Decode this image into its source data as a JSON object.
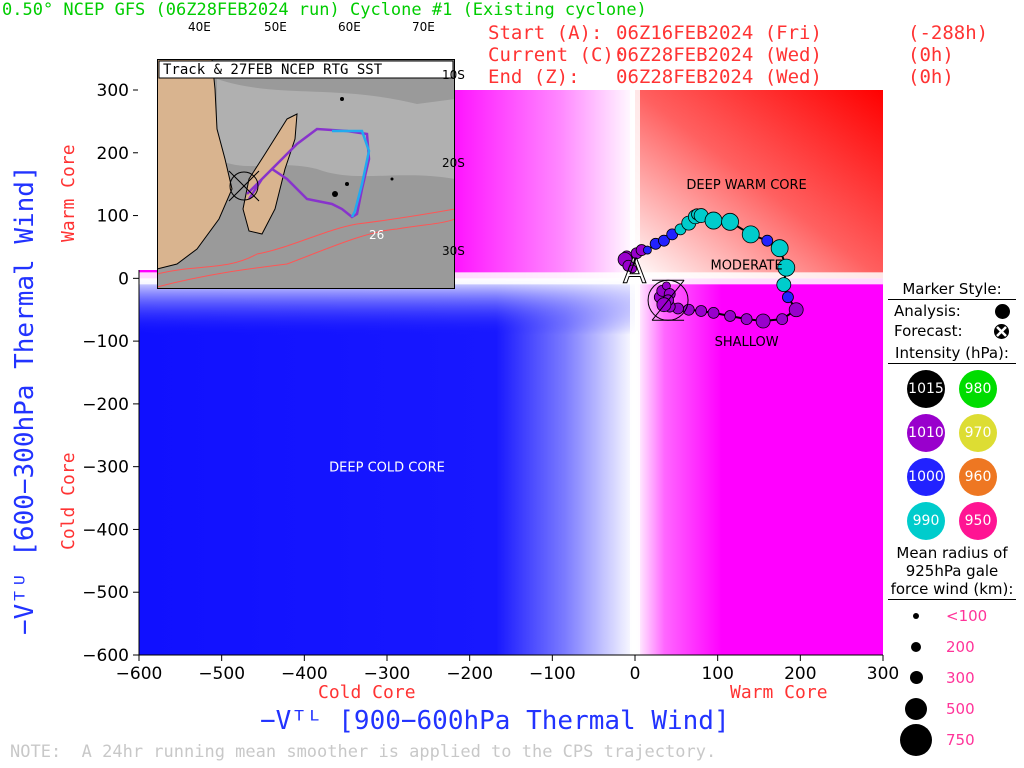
{
  "title": "0.50° NCEP GFS (06Z28FEB2024 run) Cyclone #1 (Existing cyclone)",
  "info": {
    "start": {
      "label": "Start (A):",
      "date": "06Z16FEB2024 (Fri)",
      "offset": "(-288h)"
    },
    "current": {
      "label": "Current (C):",
      "date": "06Z28FEB2024 (Wed)",
      "offset": "(0h)"
    },
    "end": {
      "label": "End (Z):",
      "date": "06Z28FEB2024 (Wed)",
      "offset": "(0h)"
    }
  },
  "note": "NOTE:  A 24hr running mean smoother is applied to the CPS trajectory.",
  "colors": {
    "title": "#00cc00",
    "info": "#ff3333",
    "axis_label": "#2233ff",
    "core_label": "#ff3333",
    "cold": "#1010ff",
    "warm_x": "#ff00ff",
    "warm_both": "#ff0000"
  },
  "chart_data": {
    "type": "scatter",
    "xlabel": "−Vᵀᴸ [900−600hPa Thermal Wind]",
    "ylabel": "−Vᵀᵁ [600−300hPa Thermal Wind]",
    "xlim": [
      -600,
      300
    ],
    "ylim": [
      -600,
      300
    ],
    "xticks": [
      -600,
      -500,
      -400,
      -300,
      -200,
      -100,
      0,
      100,
      200,
      300
    ],
    "yticks": [
      -600,
      -500,
      -400,
      -300,
      -200,
      -100,
      0,
      100,
      200,
      300
    ],
    "x_core_labels": {
      "left": "Cold Core",
      "right": "Warm Core"
    },
    "y_core_labels": {
      "bottom": "Cold Core",
      "top": "Warm Core"
    },
    "regions": [
      {
        "text": "DEEP WARM CORE",
        "x": 135,
        "y": 150
      },
      {
        "text": "MODERATE",
        "x": 135,
        "y": 22
      },
      {
        "text": "SHALLOW",
        "x": 135,
        "y": -100
      },
      {
        "text": "DEEP COLD CORE",
        "x": -300,
        "y": -300
      }
    ],
    "series": [
      {
        "points": [
          {
            "x": -10,
            "y": 35,
            "p": 1010,
            "r": 200
          },
          {
            "x": -12,
            "y": 30,
            "p": 1010,
            "r": 300
          },
          {
            "x": -8,
            "y": 20,
            "p": 1010,
            "r": 200
          },
          {
            "x": -3,
            "y": 15,
            "p": 1010,
            "r": 100
          },
          {
            "x": 2,
            "y": 40,
            "p": 1010,
            "r": 200
          },
          {
            "x": 8,
            "y": 45,
            "p": 1010,
            "r": 200
          },
          {
            "x": 15,
            "y": 45,
            "p": 1000,
            "r": 100
          },
          {
            "x": 25,
            "y": 55,
            "p": 1000,
            "r": 200
          },
          {
            "x": 35,
            "y": 60,
            "p": 1000,
            "r": 200
          },
          {
            "x": 45,
            "y": 70,
            "p": 1000,
            "r": 200
          },
          {
            "x": 55,
            "y": 78,
            "p": 990,
            "r": 200
          },
          {
            "x": 65,
            "y": 88,
            "p": 990,
            "r": 300
          },
          {
            "x": 73,
            "y": 98,
            "p": 990,
            "r": 300
          },
          {
            "x": 75,
            "y": 102,
            "p": 990,
            "r": 200
          },
          {
            "x": 80,
            "y": 100,
            "p": 990,
            "r": 300
          },
          {
            "x": 95,
            "y": 92,
            "p": 990,
            "r": 500
          },
          {
            "x": 115,
            "y": 90,
            "p": 990,
            "r": 500
          },
          {
            "x": 140,
            "y": 70,
            "p": 990,
            "r": 500
          },
          {
            "x": 160,
            "y": 60,
            "p": 1000,
            "r": 200
          },
          {
            "x": 175,
            "y": 48,
            "p": 990,
            "r": 500
          },
          {
            "x": 183,
            "y": 17,
            "p": 990,
            "r": 500
          },
          {
            "x": 180,
            "y": -10,
            "p": 990,
            "r": 300
          },
          {
            "x": 185,
            "y": -30,
            "p": 1000,
            "r": 200
          },
          {
            "x": 195,
            "y": -50,
            "p": 1010,
            "r": 300
          },
          {
            "x": 178,
            "y": -65,
            "p": 1010,
            "r": 200
          },
          {
            "x": 155,
            "y": -68,
            "p": 1010,
            "r": 300
          },
          {
            "x": 135,
            "y": -65,
            "p": 1010,
            "r": 200
          },
          {
            "x": 115,
            "y": -60,
            "p": 1010,
            "r": 200
          },
          {
            "x": 95,
            "y": -55,
            "p": 1010,
            "r": 200
          },
          {
            "x": 80,
            "y": -52,
            "p": 1010,
            "r": 200
          },
          {
            "x": 65,
            "y": -50,
            "p": 1010,
            "r": 200
          },
          {
            "x": 52,
            "y": -48,
            "p": 1010,
            "r": 200
          },
          {
            "x": 42,
            "y": -45,
            "p": 1010,
            "r": 200
          },
          {
            "x": 35,
            "y": -38,
            "p": 1010,
            "r": 300
          },
          {
            "x": 30,
            "y": -30,
            "p": 1010,
            "r": 200
          },
          {
            "x": 33,
            "y": -20,
            "p": 1010,
            "r": 200
          },
          {
            "x": 38,
            "y": -12,
            "p": 1010,
            "r": 100
          },
          {
            "x": 42,
            "y": -25,
            "p": 1010,
            "r": 200
          },
          {
            "x": 40,
            "y": -35,
            "p": 1010,
            "r": 200
          },
          {
            "x": 35,
            "y": -42,
            "p": 1010,
            "r": 300
          }
        ]
      }
    ],
    "start_marker": {
      "label": "A",
      "x": 2,
      "y": 15
    },
    "current_marker": {
      "label": "C",
      "x": 40,
      "y": -35
    },
    "end_marker": {
      "label": "Z",
      "x": 40,
      "y": -35
    }
  },
  "inset": {
    "title": "Track & 27FEB NCEP RTG SST",
    "lon_labels": [
      "40E",
      "50E",
      "60E",
      "70E"
    ],
    "lat_labels": [
      "10S",
      "20S",
      "30S"
    ],
    "sst_label": "26"
  },
  "legend": {
    "marker_style": "Marker Style:",
    "analysis": "Analysis:",
    "forecast": "Forecast:",
    "intensity": "Intensity (hPa):",
    "swatches": [
      {
        "value": "1015",
        "color": "#000000"
      },
      {
        "value": "980",
        "color": "#00dd00"
      },
      {
        "value": "1010",
        "color": "#9900cc"
      },
      {
        "value": "970",
        "color": "#dddd33"
      },
      {
        "value": "1000",
        "color": "#2222ff"
      },
      {
        "value": "960",
        "color": "#ee7722"
      },
      {
        "value": "990",
        "color": "#00cccc"
      },
      {
        "value": "950",
        "color": "#ff1493"
      }
    ],
    "radius_title1": "Mean radius of",
    "radius_title2": "925hPa gale",
    "radius_title3": "force wind (km):",
    "sizes": [
      {
        "label": "<100",
        "d": 6
      },
      {
        "label": "200",
        "d": 10
      },
      {
        "label": "300",
        "d": 13
      },
      {
        "label": "500",
        "d": 22
      },
      {
        "label": "750",
        "d": 32
      }
    ]
  }
}
